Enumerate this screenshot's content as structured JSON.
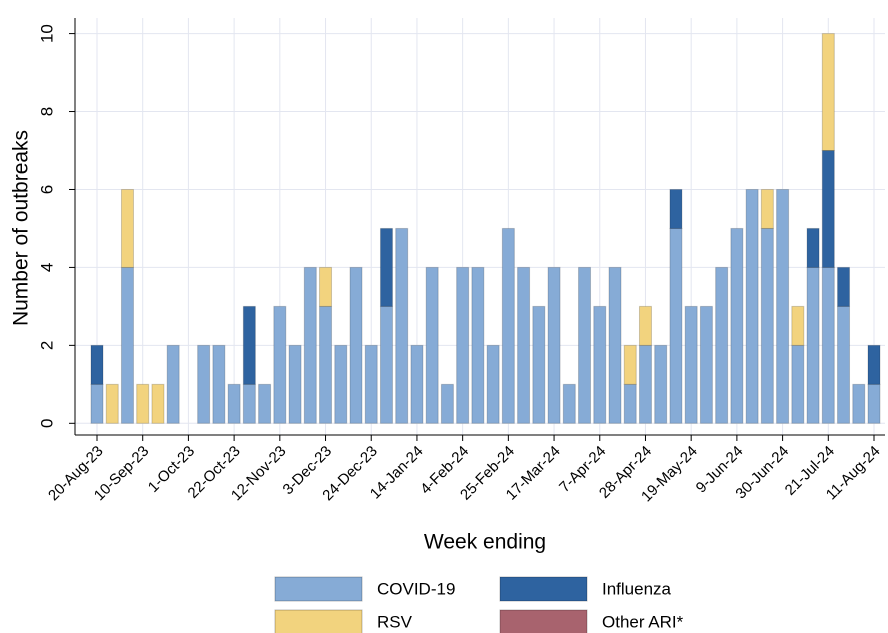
{
  "chart_data": {
    "type": "stacked_bar",
    "xlabel": "Week ending",
    "ylabel": "Number of outbreaks",
    "categories": [
      "20-Aug-23",
      null,
      null,
      "10-Sep-23",
      null,
      null,
      "1-Oct-23",
      null,
      null,
      "22-Oct-23",
      null,
      null,
      "12-Nov-23",
      null,
      null,
      "3-Dec-23",
      null,
      null,
      "24-Dec-23",
      null,
      null,
      "14-Jan-24",
      null,
      null,
      "4-Feb-24",
      null,
      null,
      "25-Feb-24",
      null,
      null,
      "17-Mar-24",
      null,
      null,
      "7-Apr-24",
      null,
      null,
      "28-Apr-24",
      null,
      null,
      "19-May-24",
      null,
      null,
      "9-Jun-24",
      null,
      null,
      "30-Jun-24",
      null,
      null,
      "21-Jul-24",
      null,
      null,
      "11-Aug-24"
    ],
    "series": [
      {
        "name": "COVID-19",
        "color": "#86abd6",
        "values": [
          1,
          0,
          4,
          0,
          0,
          2,
          0,
          2,
          2,
          1,
          1,
          1,
          3,
          2,
          4,
          3,
          2,
          4,
          2,
          3,
          5,
          2,
          4,
          1,
          4,
          4,
          2,
          5,
          4,
          3,
          4,
          1,
          4,
          3,
          4,
          1,
          2,
          2,
          5,
          3,
          3,
          4,
          5,
          6,
          5,
          6,
          2,
          4,
          4,
          3,
          1,
          1
        ]
      },
      {
        "name": "Influenza",
        "color": "#2e63a0",
        "values": [
          1,
          0,
          0,
          0,
          0,
          0,
          0,
          0,
          0,
          0,
          2,
          0,
          0,
          0,
          0,
          0,
          0,
          0,
          0,
          2,
          0,
          0,
          0,
          0,
          0,
          0,
          0,
          0,
          0,
          0,
          0,
          0,
          0,
          0,
          0,
          0,
          0,
          0,
          1,
          0,
          0,
          0,
          0,
          0,
          0,
          0,
          0,
          1,
          3,
          1,
          0,
          1
        ]
      },
      {
        "name": "RSV",
        "color": "#f2d37e",
        "values": [
          0,
          1,
          2,
          1,
          1,
          0,
          0,
          0,
          0,
          0,
          0,
          0,
          0,
          0,
          0,
          1,
          0,
          0,
          0,
          0,
          0,
          0,
          0,
          0,
          0,
          0,
          0,
          0,
          0,
          0,
          0,
          0,
          0,
          0,
          0,
          1,
          1,
          0,
          0,
          0,
          0,
          0,
          0,
          0,
          1,
          0,
          1,
          0,
          3,
          0,
          0,
          0
        ]
      },
      {
        "name": "Other ARI*",
        "color": "#a8636e",
        "values": [
          0,
          0,
          0,
          0,
          0,
          0,
          0,
          0,
          0,
          0,
          0,
          0,
          0,
          0,
          0,
          0,
          0,
          0,
          0,
          0,
          0,
          0,
          0,
          0,
          0,
          0,
          0,
          0,
          0,
          0,
          0,
          0,
          0,
          0,
          0,
          0,
          0,
          0,
          0,
          0,
          0,
          0,
          0,
          0,
          0,
          0,
          0,
          0,
          0,
          0,
          0,
          0
        ]
      }
    ],
    "ylim": [
      -0.3,
      10.4
    ],
    "yticks": [
      0,
      2,
      4,
      6,
      8,
      10
    ],
    "grid": true,
    "legend": "bottom"
  }
}
